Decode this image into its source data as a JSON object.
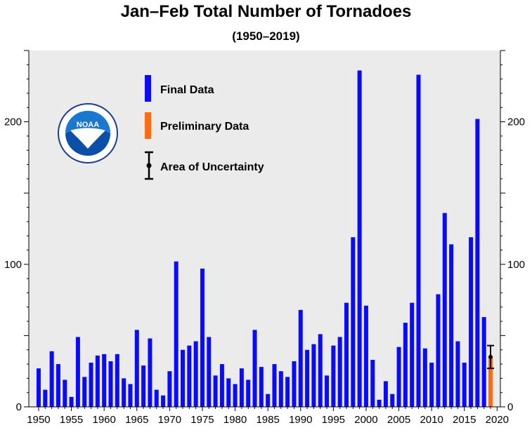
{
  "chart_data": {
    "type": "bar",
    "title": "Jan–Feb Total Number of Tornadoes",
    "subtitle": "(1950–2019)",
    "xlabel": "",
    "ylabel": "",
    "xlim": [
      1948.5,
      2020.5
    ],
    "ylim": [
      0,
      250
    ],
    "x_ticks": [
      1950,
      1955,
      1960,
      1965,
      1970,
      1975,
      1980,
      1985,
      1990,
      1995,
      2000,
      2005,
      2010,
      2015,
      2020
    ],
    "y_ticks": [
      0,
      100,
      200
    ],
    "grid": false,
    "legend_position": "top-left",
    "colors": {
      "final": "#0a0aff",
      "preliminary": "#ff6a13",
      "background": "#ebebeb",
      "uncertainty": "#000000"
    },
    "series": [
      {
        "name": "Final Data",
        "x": [
          1950,
          1951,
          1952,
          1953,
          1954,
          1955,
          1956,
          1957,
          1958,
          1959,
          1960,
          1961,
          1962,
          1963,
          1964,
          1965,
          1966,
          1967,
          1968,
          1969,
          1970,
          1971,
          1972,
          1973,
          1974,
          1975,
          1976,
          1977,
          1978,
          1979,
          1980,
          1981,
          1982,
          1983,
          1984,
          1985,
          1986,
          1987,
          1988,
          1989,
          1990,
          1991,
          1992,
          1993,
          1994,
          1995,
          1996,
          1997,
          1998,
          1999,
          2000,
          2001,
          2002,
          2003,
          2004,
          2005,
          2006,
          2007,
          2008,
          2009,
          2010,
          2011,
          2012,
          2013,
          2014,
          2015,
          2016,
          2017,
          2018
        ],
        "values": [
          27,
          12,
          39,
          30,
          19,
          7,
          49,
          21,
          31,
          36,
          37,
          32,
          37,
          20,
          16,
          54,
          29,
          48,
          12,
          8,
          25,
          102,
          40,
          43,
          46,
          97,
          49,
          22,
          30,
          20,
          16,
          27,
          19,
          54,
          28,
          9,
          30,
          25,
          21,
          32,
          68,
          40,
          44,
          51,
          22,
          43,
          49,
          73,
          119,
          236,
          71,
          33,
          5,
          18,
          9,
          42,
          59,
          73,
          233,
          41,
          31,
          79,
          136,
          114,
          46,
          31,
          119,
          202,
          63
        ]
      },
      {
        "name": "Preliminary Data",
        "x": [
          2019
        ],
        "values": [
          35
        ]
      }
    ],
    "uncertainty": {
      "name": "Area of Uncertainty",
      "x": 2019,
      "low": 27,
      "high": 43
    },
    "legend": {
      "final_label": "Final Data",
      "preliminary_label": "Preliminary Data",
      "uncertainty_label": "Area of Uncertainty"
    },
    "logo": {
      "name": "noaa-logo-icon",
      "text": "NOAA"
    }
  }
}
